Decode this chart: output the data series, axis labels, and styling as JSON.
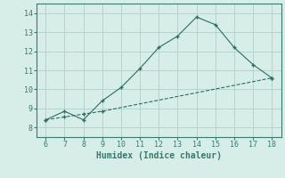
{
  "xlabel": "Humidex (Indice chaleur)",
  "x_main": [
    6,
    7,
    8,
    9,
    10,
    11,
    12,
    13,
    14,
    15,
    16,
    17,
    18
  ],
  "y_main": [
    8.4,
    8.85,
    8.4,
    9.4,
    10.1,
    11.1,
    12.2,
    12.8,
    13.8,
    13.4,
    12.2,
    11.3,
    10.6
  ],
  "x_dash": [
    6,
    7,
    8,
    9,
    18
  ],
  "y_dash": [
    8.4,
    8.55,
    8.7,
    8.85,
    10.6
  ],
  "line_color": "#2a6e62",
  "bg_color": "#d6ede8",
  "grid_color": "#b0cfc9",
  "spine_color": "#3a7a70",
  "ylim": [
    7.5,
    14.5
  ],
  "xlim": [
    5.5,
    18.5
  ],
  "yticks": [
    8,
    9,
    10,
    11,
    12,
    13,
    14
  ],
  "xticks": [
    6,
    7,
    8,
    9,
    10,
    11,
    12,
    13,
    14,
    15,
    16,
    17,
    18
  ]
}
